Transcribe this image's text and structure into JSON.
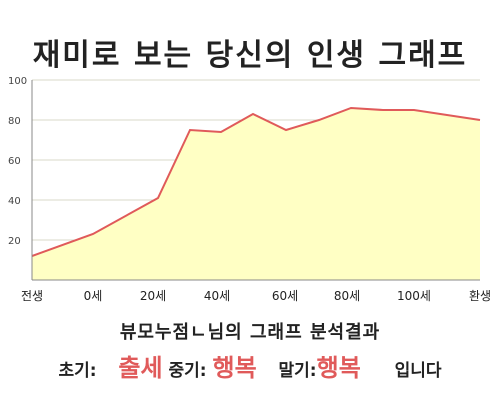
{
  "page": {
    "title": "재미로 보는 당신의 인생 그래프",
    "caption": "뷰모누점ㄴ님의 그래프 분석결과",
    "result": {
      "early_label": "초기:",
      "early_value": "출세",
      "mid_label": "중기:",
      "mid_value": "행복",
      "late_label": "말기:",
      "late_value": "행복",
      "suffix": "입니다"
    },
    "colors": {
      "line": "#e05a5a",
      "fill": "#ffffc4",
      "highlight": "#e05a5a"
    }
  },
  "chart_data": {
    "type": "area",
    "x_labels": [
      "전생",
      "0세",
      "20세",
      "40세",
      "60세",
      "80세",
      "100세",
      "환생"
    ],
    "x": [
      "전생",
      "0세",
      "20세",
      "35세",
      "40세",
      "50세",
      "60세",
      "70세",
      "80세",
      "90세",
      "100세",
      "환생"
    ],
    "values": [
      12,
      23,
      41,
      75,
      74,
      83,
      75,
      80,
      86,
      85,
      85,
      80
    ],
    "ylim": [
      0,
      100
    ],
    "yticks": [
      20,
      40,
      60,
      80,
      100
    ],
    "grid": "horizontal"
  }
}
